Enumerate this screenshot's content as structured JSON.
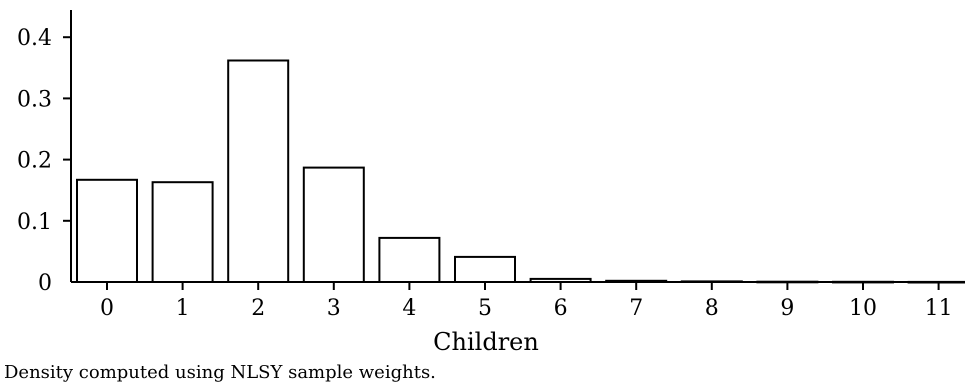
{
  "chart_data": {
    "type": "bar",
    "categories": [
      "0",
      "1",
      "2",
      "3",
      "4",
      "5",
      "6",
      "7",
      "8",
      "9",
      "10",
      "11"
    ],
    "values": [
      0.167,
      0.163,
      0.362,
      0.187,
      0.072,
      0.041,
      0.005,
      0.002,
      0.001,
      0.0005,
      0.0003,
      0.0002
    ],
    "xlabel": "Children",
    "ylabel": "",
    "ylim": [
      0,
      0.44
    ],
    "yticks": [
      0,
      0.1,
      0.2,
      0.3,
      0.4
    ],
    "ytick_labels": [
      "0",
      "0.1",
      "0.2",
      "0.3",
      "0.4"
    ],
    "grid": false,
    "bar_fill": "#ffffff",
    "bar_stroke": "#000000"
  },
  "note": "Density computed using NLSY sample weights."
}
